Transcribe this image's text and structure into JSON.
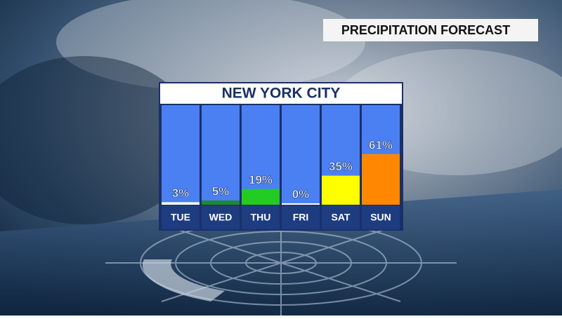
{
  "chart_data": {
    "type": "bar",
    "subtitle": "PRECIPITATION FORECAST",
    "title": "NEW YORK CITY",
    "categories": [
      "TUE",
      "WED",
      "THU",
      "FRI",
      "SAT",
      "SUN"
    ],
    "values": [
      3,
      5,
      19,
      0,
      35,
      61
    ],
    "value_labels": [
      "3%",
      "5%",
      "19%",
      "0%",
      "35%",
      "61%"
    ],
    "colors": [
      "#ffffff",
      "#1f8a2a",
      "#22cc22",
      "#ffffff",
      "#ffff00",
      "#ff8800"
    ],
    "ylim": [
      0,
      120
    ]
  }
}
